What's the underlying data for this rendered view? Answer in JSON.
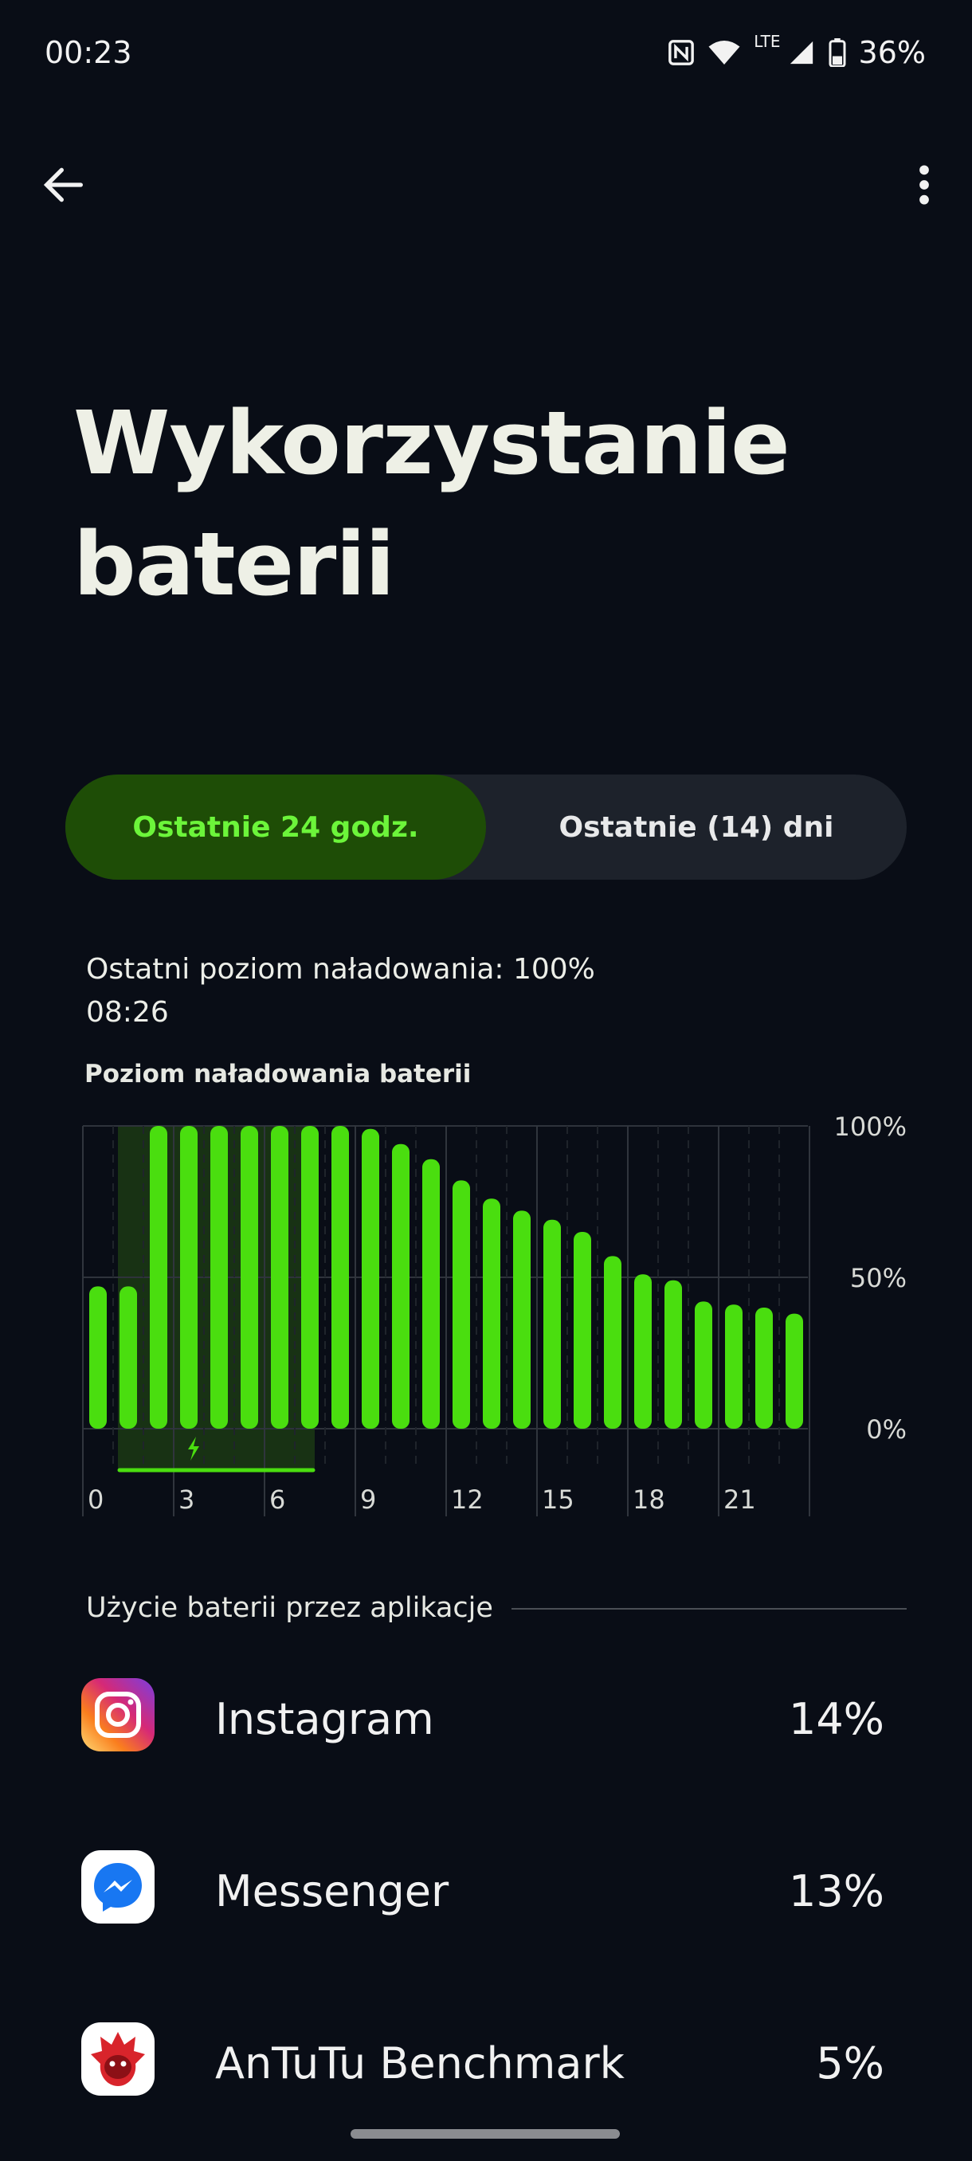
{
  "status_bar": {
    "time": "00:23",
    "network": "LTE",
    "battery": "36%",
    "icons": [
      "nfc-icon",
      "wifi-icon",
      "signal-icon",
      "battery-icon"
    ]
  },
  "toolbar": {
    "back_icon": "arrow-left-icon",
    "more_icon": "more-vert-icon"
  },
  "page": {
    "title": "Wykorzystanie baterii"
  },
  "tabs": [
    {
      "label": "Ostatnie 24 godz.",
      "selected": true
    },
    {
      "label": "Ostatnie (14) dni",
      "selected": false
    }
  ],
  "last_charge": {
    "label": "Ostatni poziom naładowania: 100%",
    "time": "08:26"
  },
  "chart_data": {
    "type": "bar",
    "title": "Poziom naładowania baterii",
    "x": [
      0,
      1,
      2,
      3,
      4,
      5,
      6,
      7,
      8,
      9,
      10,
      11,
      12,
      13,
      14,
      15,
      16,
      17,
      18,
      19,
      20,
      21,
      22,
      23
    ],
    "values": [
      47,
      47,
      100,
      100,
      100,
      100,
      100,
      100,
      100,
      99,
      94,
      89,
      82,
      76,
      72,
      69,
      65,
      57,
      51,
      49,
      42,
      41,
      40,
      38
    ],
    "x_tick_labels": [
      "0",
      "3",
      "6",
      "9",
      "12",
      "15",
      "18",
      "21"
    ],
    "y_tick_labels": [
      "100%",
      "50%",
      "0%"
    ],
    "ylim": [
      0,
      100
    ],
    "charging_range": [
      1,
      7.5
    ],
    "bar_color": "#4ade0f",
    "charging_shade_color": "#1b3a14"
  },
  "app_usage": {
    "section_label": "Użycie baterii przez aplikacje",
    "apps": [
      {
        "name": "Instagram",
        "percent": "14%",
        "icon": "instagram-icon"
      },
      {
        "name": "Messenger",
        "percent": "13%",
        "icon": "messenger-icon"
      },
      {
        "name": "AnTuTu Benchmark",
        "percent": "5%",
        "icon": "antutu-icon"
      }
    ]
  }
}
